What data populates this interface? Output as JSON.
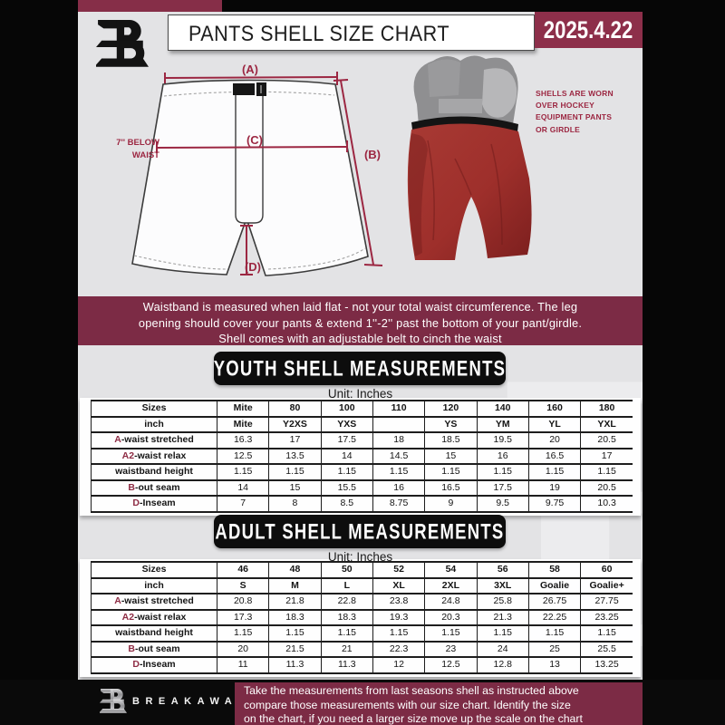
{
  "header": {
    "title": "PANTS SHELL SIZE CHART",
    "date": "2025.4.22"
  },
  "diagram": {
    "label_a": "(A)",
    "label_b": "(B)",
    "label_c": "(C)",
    "label_d": "(D)",
    "below_waist_note": "7'' BELOW WAIST"
  },
  "photo": {
    "note_lines": [
      "SHELLS ARE WORN",
      "OVER HOCKEY",
      "EQUIPMENT PANTS",
      "OR GIRDLE"
    ]
  },
  "info_banner": {
    "lines": [
      "Waistband is measured when laid flat - not your total waist circumference. The leg",
      "opening should cover your pants & extend 1''-2'' past the bottom of your pant/girdle.",
      "Shell comes with an adjustable belt to cinch the waist"
    ]
  },
  "youth_section": {
    "title": "YOUTH SHELL MEASUREMENTS",
    "unit": "Unit: Inches",
    "rows": [
      {
        "prefix": "",
        "label": "Sizes",
        "header": true,
        "values": [
          "Mite",
          "80",
          "100",
          "110",
          "120",
          "140",
          "160",
          "180"
        ]
      },
      {
        "prefix": "",
        "label": "inch",
        "header": true,
        "values": [
          "Mite",
          "Y2XS",
          "YXS",
          "",
          "YS",
          "YM",
          "YL",
          "YXL"
        ]
      },
      {
        "prefix": "A",
        "label": "-waist stretched",
        "header": false,
        "values": [
          "16.3",
          "17",
          "17.5",
          "18",
          "18.5",
          "19.5",
          "20",
          "20.5"
        ]
      },
      {
        "prefix": "A2",
        "label": "-waist relax",
        "header": false,
        "values": [
          "12.5",
          "13.5",
          "14",
          "14.5",
          "15",
          "16",
          "16.5",
          "17"
        ]
      },
      {
        "prefix": "",
        "label": "waistband height",
        "header": false,
        "values": [
          "1.15",
          "1.15",
          "1.15",
          "1.15",
          "1.15",
          "1.15",
          "1.15",
          "1.15"
        ]
      },
      {
        "prefix": "B",
        "label": "-out seam",
        "header": false,
        "values": [
          "14",
          "15",
          "15.5",
          "16",
          "16.5",
          "17.5",
          "19",
          "20.5"
        ]
      },
      {
        "prefix": "D",
        "label": "-Inseam",
        "header": false,
        "values": [
          "7",
          "8",
          "8.5",
          "8.75",
          "9",
          "9.5",
          "9.75",
          "10.3"
        ]
      }
    ]
  },
  "adult_section": {
    "title": "ADULT SHELL MEASUREMENTS",
    "unit": "Unit: Inches",
    "rows": [
      {
        "prefix": "",
        "label": "Sizes",
        "header": true,
        "values": [
          "46",
          "48",
          "50",
          "52",
          "54",
          "56",
          "58",
          "60"
        ]
      },
      {
        "prefix": "",
        "label": "inch",
        "header": true,
        "values": [
          "S",
          "M",
          "L",
          "XL",
          "2XL",
          "3XL",
          "Goalie",
          "Goalie+"
        ]
      },
      {
        "prefix": "A",
        "label": "-waist stretched",
        "header": false,
        "values": [
          "20.8",
          "21.8",
          "22.8",
          "23.8",
          "24.8",
          "25.8",
          "26.75",
          "27.75"
        ]
      },
      {
        "prefix": "A2",
        "label": "-waist relax",
        "header": false,
        "values": [
          "17.3",
          "18.3",
          "18.3",
          "19.3",
          "20.3",
          "21.3",
          "22.25",
          "23.25"
        ]
      },
      {
        "prefix": "",
        "label": "waistband height",
        "header": false,
        "values": [
          "1.15",
          "1.15",
          "1.15",
          "1.15",
          "1.15",
          "1.15",
          "1.15",
          "1.15"
        ]
      },
      {
        "prefix": "B",
        "label": "-out seam",
        "header": false,
        "values": [
          "20",
          "21.5",
          "21",
          "22.3",
          "23",
          "24",
          "25",
          "25.5"
        ]
      },
      {
        "prefix": "D",
        "label": "-Inseam",
        "header": false,
        "values": [
          "11",
          "11.3",
          "11.3",
          "12",
          "12.5",
          "12.8",
          "13",
          "13.25"
        ]
      }
    ]
  },
  "footer": {
    "brand": "BREAKAWAY",
    "note_lines": [
      "Take the measurements from last seasons shell as instructed above",
      "compare those measurements  with our size chart. Identify the size",
      "on the chart, if you need a larger size move up the scale on the chart"
    ]
  },
  "colors": {
    "maroon": "#7c2b45",
    "maroon_bright": "#8d2f4a",
    "annotation_maroon": "#9c2742",
    "shell_red": "#9e2f2b",
    "page_bg": "#e3e3e5",
    "black": "#0a0a0a"
  },
  "watermark_letter": "B"
}
